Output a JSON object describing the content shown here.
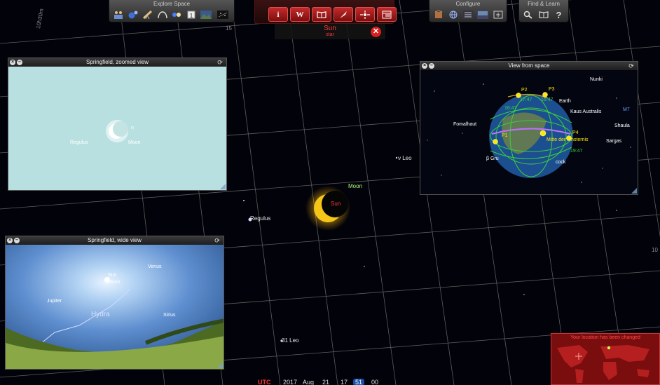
{
  "toolbar": {
    "groups": [
      {
        "label": "Explore Space"
      },
      {
        "label": "Configure"
      },
      {
        "label": "Find & Learn"
      }
    ],
    "center_buttons": [
      "i",
      "W"
    ]
  },
  "selection": {
    "name": "Sun",
    "type": "star",
    "close_icon": "close-icon"
  },
  "sky": {
    "labels": {
      "sun": "Sun",
      "moon": "Moon",
      "regulus": "Regulus",
      "nu_leo": "ν Leo",
      "leo31": "31 Leo"
    },
    "grid_labels": {
      "top_ra": "10h30m",
      "top_dec": "15",
      "right_dec": "10"
    }
  },
  "panels": {
    "zoomed": {
      "title": "Springfield, zoomed view",
      "labels": {
        "regulus": "Regulus",
        "moon": "Moon",
        "moon_partial": "n"
      }
    },
    "space": {
      "title": "View from space",
      "labels": {
        "nunki": "Nunki",
        "kaus": "Kaus Australis",
        "earth": "Earth",
        "fomalhaut": "Fomalhaut",
        "shaula": "Shaula",
        "sargas": "Sargas",
        "m7": "M7",
        "mitte": "Mitte der Finsternis",
        "cock": "cock",
        "grus": "β Gru",
        "p1": "P1",
        "p2": "P2",
        "p3": "P3",
        "p4": "P4",
        "t1": "17:47",
        "t2": "16:47",
        "t3": "16:47",
        "t4": "19:47"
      }
    },
    "wide": {
      "title": "Springfield, wide view",
      "labels": {
        "sun": "Sun",
        "moon": "Moon",
        "venus": "Venus",
        "jupiter": "Jupiter",
        "hydra": "Hydra",
        "sirius": "Sirius"
      }
    }
  },
  "datebar": {
    "utc": "UTC",
    "year": "2017",
    "month": "Aug",
    "day": "21",
    "hour": "17",
    "minute": "51",
    "second": "00"
  },
  "location": {
    "title": "Your location has been changed"
  },
  "colors": {
    "accent_red": "#ff3a3a",
    "toolbar_red": "#c42a2a",
    "sun_yellow": "#f5c518",
    "moon_label_green": "#a8ff7a"
  }
}
